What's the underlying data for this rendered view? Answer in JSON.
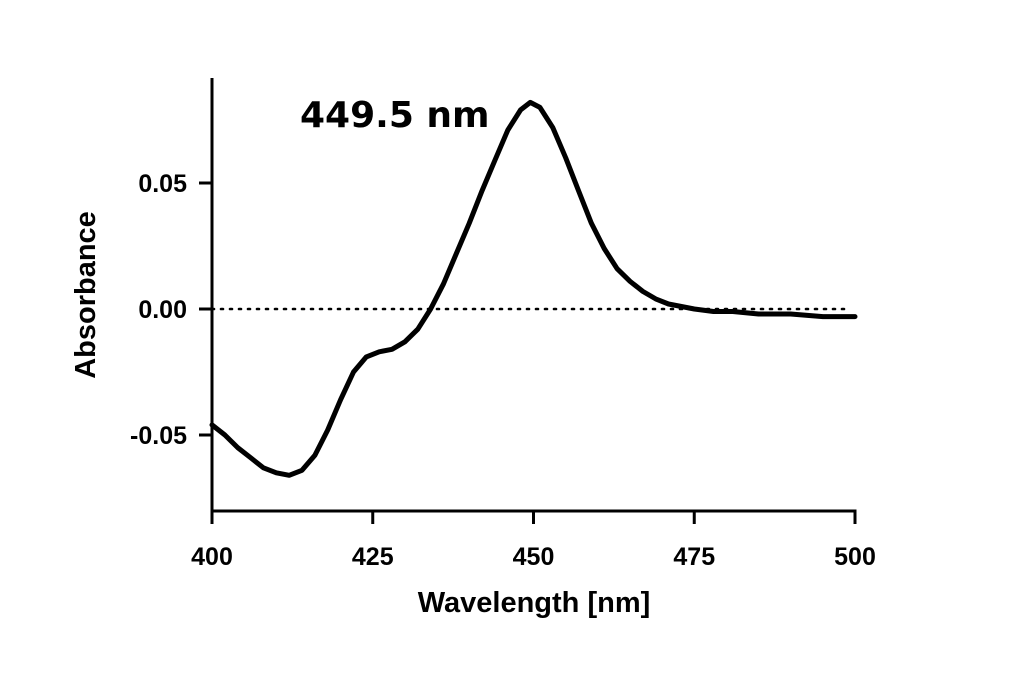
{
  "chart_data": {
    "type": "line",
    "title": "",
    "xlabel": "Wavelength [nm]",
    "ylabel": "Absorbance",
    "xlim": [
      400,
      500
    ],
    "ylim": [
      -0.08,
      0.09
    ],
    "x_ticks": [
      400,
      425,
      450,
      475,
      500
    ],
    "x_tick_labels": [
      "400",
      "425",
      "450",
      "475",
      "500"
    ],
    "y_ticks": [
      -0.05,
      0.0,
      0.05
    ],
    "y_tick_labels": [
      "-0.05",
      "0.00",
      "0.05"
    ],
    "grid": false,
    "legend": "none",
    "reference_line": {
      "y": 0.0,
      "style": "dotted"
    },
    "annotations": [
      {
        "text": "449.5 nm",
        "x": 449.5
      }
    ],
    "line_color": "#000000",
    "series": [
      {
        "x": [
          400,
          402,
          404,
          406,
          408,
          410,
          412,
          414,
          416,
          418,
          420,
          422,
          424,
          426,
          428,
          430,
          432,
          434,
          436,
          438,
          440,
          442,
          444,
          446,
          448,
          449.5,
          451,
          453,
          455,
          457,
          459,
          461,
          463,
          465,
          467,
          469,
          471,
          473,
          475,
          478,
          481,
          485,
          490,
          495,
          500
        ],
        "values": [
          -0.046,
          -0.05,
          -0.055,
          -0.059,
          -0.063,
          -0.065,
          -0.066,
          -0.064,
          -0.058,
          -0.048,
          -0.036,
          -0.025,
          -0.019,
          -0.017,
          -0.016,
          -0.013,
          -0.008,
          0.0,
          0.01,
          0.022,
          0.034,
          0.047,
          0.059,
          0.071,
          0.079,
          0.082,
          0.08,
          0.072,
          0.06,
          0.047,
          0.034,
          0.024,
          0.016,
          0.011,
          0.007,
          0.004,
          0.002,
          0.001,
          0.0,
          -0.001,
          -0.001,
          -0.002,
          -0.002,
          -0.003,
          -0.003
        ]
      }
    ]
  }
}
